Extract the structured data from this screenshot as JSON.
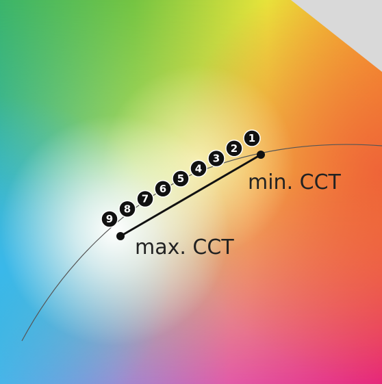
{
  "labels": {
    "min_cct": "min. CCT",
    "max_cct": "max. CCT"
  },
  "steps": [
    "9",
    "8",
    "7",
    "6",
    "5",
    "4",
    "3",
    "2",
    "1"
  ],
  "colors": {
    "line": "#111111",
    "curve": "#555555",
    "badge_fill": "#111111",
    "badge_text": "#ffffff",
    "corner_grey": "#d9d9d9"
  }
}
